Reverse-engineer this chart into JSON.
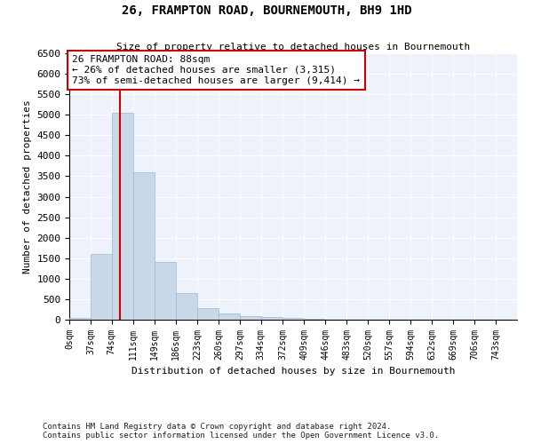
{
  "title": "26, FRAMPTON ROAD, BOURNEMOUTH, BH9 1HD",
  "subtitle": "Size of property relative to detached houses in Bournemouth",
  "xlabel": "Distribution of detached houses by size in Bournemouth",
  "ylabel": "Number of detached properties",
  "footnote1": "Contains HM Land Registry data © Crown copyright and database right 2024.",
  "footnote2": "Contains public sector information licensed under the Open Government Licence v3.0.",
  "annotation_title": "26 FRAMPTON ROAD: 88sqm",
  "annotation_line1": "← 26% of detached houses are smaller (3,315)",
  "annotation_line2": "73% of semi-detached houses are larger (9,414) →",
  "property_size": 88,
  "bar_left_edges": [
    0,
    37,
    74,
    111,
    149,
    186,
    223,
    260,
    297,
    334,
    372,
    409,
    446,
    483,
    520,
    557,
    594,
    632,
    669,
    706,
    743
  ],
  "bar_heights": [
    50,
    1600,
    5050,
    3600,
    1400,
    650,
    280,
    150,
    80,
    55,
    40,
    20,
    10,
    0,
    0,
    0,
    0,
    0,
    0,
    0,
    0
  ],
  "bar_color": "#c8d8e8",
  "bar_edgecolor": "#a0b8d0",
  "vline_color": "#cc0000",
  "vline_x": 88,
  "annotation_box_color": "#cc0000",
  "background_color": "#eef2fb",
  "ylim": [
    0,
    6500
  ],
  "yticks": [
    0,
    500,
    1000,
    1500,
    2000,
    2500,
    3000,
    3500,
    4000,
    4500,
    5000,
    5500,
    6000,
    6500
  ],
  "xtick_labels": [
    "0sqm",
    "37sqm",
    "74sqm",
    "111sqm",
    "149sqm",
    "186sqm",
    "223sqm",
    "260sqm",
    "297sqm",
    "334sqm",
    "372sqm",
    "409sqm",
    "446sqm",
    "483sqm",
    "520sqm",
    "557sqm",
    "594sqm",
    "632sqm",
    "669sqm",
    "706sqm",
    "743sqm"
  ]
}
